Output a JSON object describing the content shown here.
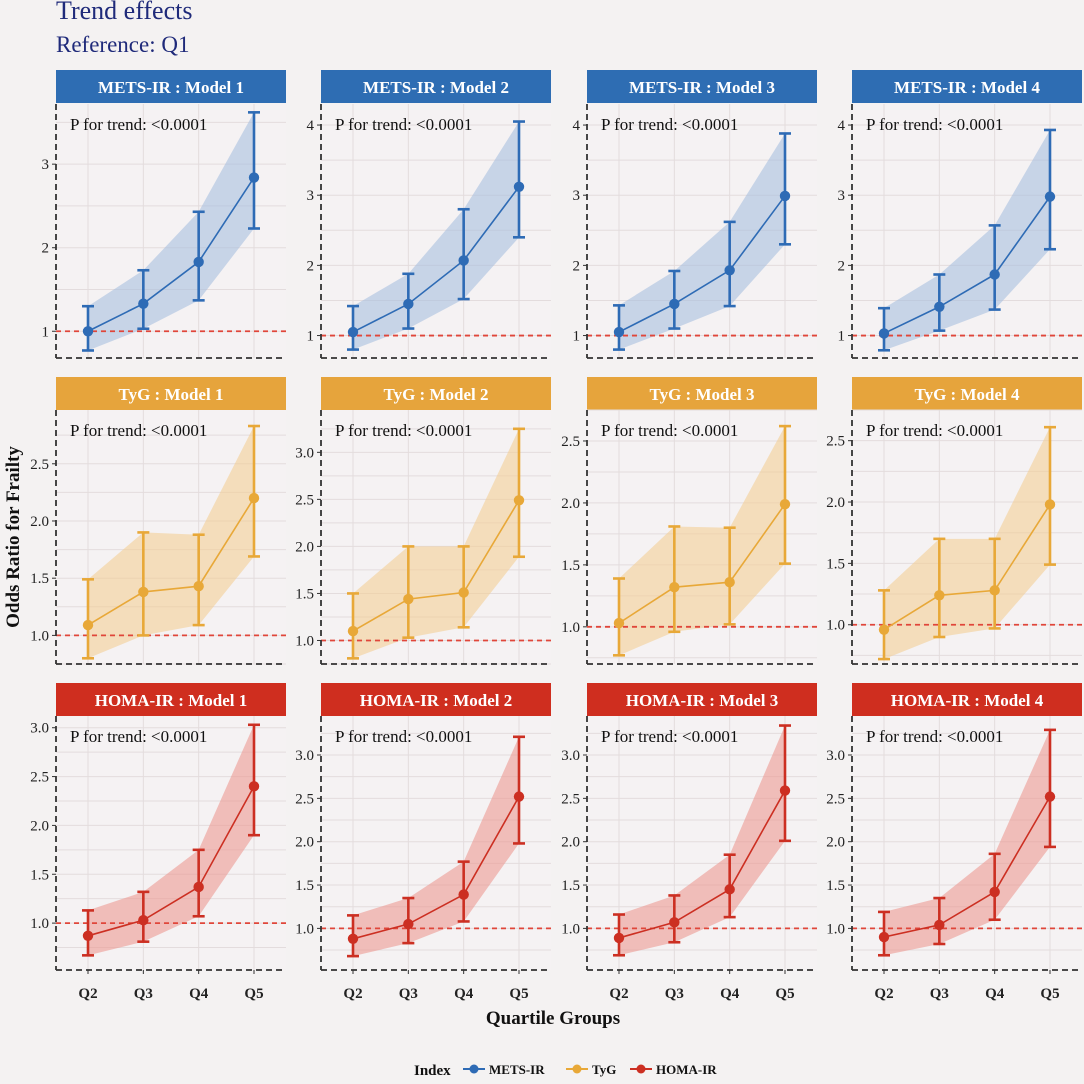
{
  "header": {
    "title": "Trend effects",
    "subtitle": "Reference: Q1"
  },
  "chart_data": {
    "type": "line",
    "xlabel": "Quartile Groups",
    "ylabel": "Odds Ratio for Frailty",
    "categories": [
      "Q2",
      "Q3",
      "Q4",
      "Q5"
    ],
    "reference_line": 1.0,
    "legend": {
      "title": "Index",
      "entries": [
        "METS-IR",
        "TyG",
        "HOMA-IR"
      ],
      "placement": "bottom"
    },
    "colors": {
      "METS-IR": "#2e6bb5",
      "TyG": "#e8a838",
      "HOMA-IR": "#cc2f22",
      "reference": "#e0463a"
    },
    "strip_colors": {
      "METS-IR": "#2e6db3",
      "TyG": "#e6a43c",
      "HOMA-IR": "#cf2e1f"
    },
    "panels": [
      {
        "index": "METS-IR",
        "model": "Model 1",
        "label": "METS-IR : Model 1",
        "p_text": "P for trend: <0.0001",
        "ylim": [
          0.68,
          3.72
        ],
        "yticks": [
          1,
          2,
          3
        ],
        "tick_labels": [
          "1",
          "2",
          "3"
        ],
        "or": [
          1.0,
          1.33,
          1.83,
          2.84
        ],
        "lo": [
          0.77,
          1.03,
          1.37,
          2.23
        ],
        "hi": [
          1.3,
          1.73,
          2.43,
          3.62
        ]
      },
      {
        "index": "METS-IR",
        "model": "Model 2",
        "label": "METS-IR : Model 2",
        "p_text": "P for trend: <0.0001",
        "ylim": [
          0.68,
          4.3
        ],
        "yticks": [
          1,
          2,
          3,
          4
        ],
        "tick_labels": [
          "1",
          "2",
          "3",
          "4"
        ],
        "or": [
          1.05,
          1.45,
          2.07,
          3.12
        ],
        "lo": [
          0.8,
          1.1,
          1.52,
          2.4
        ],
        "hi": [
          1.42,
          1.88,
          2.8,
          4.05
        ]
      },
      {
        "index": "METS-IR",
        "model": "Model 3",
        "label": "METS-IR : Model 3",
        "p_text": "P for trend: <0.0001",
        "ylim": [
          0.68,
          4.3
        ],
        "yticks": [
          1,
          2,
          3,
          4
        ],
        "tick_labels": [
          "1",
          "2",
          "3",
          "4"
        ],
        "or": [
          1.05,
          1.45,
          1.93,
          2.99
        ],
        "lo": [
          0.8,
          1.1,
          1.42,
          2.3
        ],
        "hi": [
          1.43,
          1.92,
          2.62,
          3.88
        ]
      },
      {
        "index": "METS-IR",
        "model": "Model 4",
        "label": "METS-IR : Model 4",
        "p_text": "P for trend: <0.0001",
        "ylim": [
          0.68,
          4.3
        ],
        "yticks": [
          1,
          2,
          3,
          4
        ],
        "tick_labels": [
          "1",
          "2",
          "3",
          "4"
        ],
        "or": [
          1.03,
          1.41,
          1.87,
          2.98
        ],
        "lo": [
          0.79,
          1.07,
          1.37,
          2.23
        ],
        "hi": [
          1.39,
          1.87,
          2.57,
          3.93
        ]
      },
      {
        "index": "TyG",
        "model": "Model 1",
        "label": "TyG : Model 1",
        "p_text": "P for trend: <0.0001",
        "ylim": [
          0.75,
          2.97
        ],
        "yticks": [
          1.0,
          1.5,
          2.0,
          2.5
        ],
        "tick_labels": [
          "1.0",
          "1.5",
          "2.0",
          "2.5"
        ],
        "or": [
          1.09,
          1.38,
          1.43,
          2.2
        ],
        "lo": [
          0.8,
          1.0,
          1.09,
          1.69
        ],
        "hi": [
          1.49,
          1.9,
          1.88,
          2.83
        ]
      },
      {
        "index": "TyG",
        "model": "Model 2",
        "label": "TyG : Model 2",
        "p_text": "P for trend: <0.0001",
        "ylim": [
          0.75,
          3.45
        ],
        "yticks": [
          1.0,
          1.5,
          2.0,
          2.5,
          3.0
        ],
        "tick_labels": [
          "1.0",
          "1.5",
          "2.0",
          "2.5",
          "3.0"
        ],
        "or": [
          1.1,
          1.44,
          1.51,
          2.49
        ],
        "lo": [
          0.81,
          1.03,
          1.14,
          1.89
        ],
        "hi": [
          1.5,
          2.0,
          2.0,
          3.25
        ]
      },
      {
        "index": "TyG",
        "model": "Model 3",
        "label": "TyG : Model 3",
        "p_text": "P for trend: <0.0001",
        "ylim": [
          0.7,
          2.75
        ],
        "yticks": [
          1.0,
          1.5,
          2.0,
          2.5
        ],
        "tick_labels": [
          "1.0",
          "1.5",
          "2.0",
          "2.5"
        ],
        "or": [
          1.03,
          1.32,
          1.36,
          1.99
        ],
        "lo": [
          0.77,
          0.96,
          1.02,
          1.51
        ],
        "hi": [
          1.39,
          1.81,
          1.8,
          2.62
        ]
      },
      {
        "index": "TyG",
        "model": "Model 4",
        "label": "TyG : Model 4",
        "p_text": "P for trend: <0.0001",
        "ylim": [
          0.68,
          2.75
        ],
        "yticks": [
          1.0,
          1.5,
          2.0,
          2.5
        ],
        "tick_labels": [
          "1.0",
          "1.5",
          "2.0",
          "2.5"
        ],
        "or": [
          0.96,
          1.24,
          1.28,
          1.98
        ],
        "lo": [
          0.72,
          0.9,
          0.97,
          1.49
        ],
        "hi": [
          1.28,
          1.7,
          1.7,
          2.61
        ]
      },
      {
        "index": "HOMA-IR",
        "model": "Model 1",
        "label": "HOMA-IR : Model 1",
        "p_text": "P for trend: <0.0001",
        "ylim": [
          0.52,
          3.12
        ],
        "yticks": [
          1.0,
          1.5,
          2.0,
          2.5,
          3.0
        ],
        "tick_labels": [
          "1.0",
          "1.5",
          "2.0",
          "2.5",
          "3.0"
        ],
        "or": [
          0.87,
          1.03,
          1.37,
          2.4
        ],
        "lo": [
          0.67,
          0.81,
          1.07,
          1.9
        ],
        "hi": [
          1.13,
          1.32,
          1.75,
          3.03
        ]
      },
      {
        "index": "HOMA-IR",
        "model": "Model 2",
        "label": "HOMA-IR : Model 2",
        "p_text": "P for trend: <0.0001",
        "ylim": [
          0.52,
          3.45
        ],
        "yticks": [
          1.0,
          1.5,
          2.0,
          2.5,
          3.0
        ],
        "tick_labels": [
          "1.0",
          "1.5",
          "2.0",
          "2.5",
          "3.0"
        ],
        "or": [
          0.88,
          1.05,
          1.39,
          2.52
        ],
        "lo": [
          0.68,
          0.83,
          1.08,
          1.98
        ],
        "hi": [
          1.15,
          1.35,
          1.77,
          3.21
        ]
      },
      {
        "index": "HOMA-IR",
        "model": "Model 3",
        "label": "HOMA-IR : Model 3",
        "p_text": "P for trend: <0.0001",
        "ylim": [
          0.52,
          3.45
        ],
        "yticks": [
          1.0,
          1.5,
          2.0,
          2.5,
          3.0
        ],
        "tick_labels": [
          "1.0",
          "1.5",
          "2.0",
          "2.5",
          "3.0"
        ],
        "or": [
          0.89,
          1.07,
          1.45,
          2.59
        ],
        "lo": [
          0.69,
          0.84,
          1.13,
          2.01
        ],
        "hi": [
          1.16,
          1.38,
          1.85,
          3.34
        ]
      },
      {
        "index": "HOMA-IR",
        "model": "Model 4",
        "label": "HOMA-IR : Model 4",
        "p_text": "P for trend: <0.0001",
        "ylim": [
          0.52,
          3.45
        ],
        "yticks": [
          1.0,
          1.5,
          2.0,
          2.5,
          3.0
        ],
        "tick_labels": [
          "1.0",
          "1.5",
          "2.0",
          "2.5",
          "3.0"
        ],
        "or": [
          0.9,
          1.04,
          1.42,
          2.52
        ],
        "lo": [
          0.69,
          0.82,
          1.1,
          1.94
        ],
        "hi": [
          1.19,
          1.35,
          1.86,
          3.29
        ]
      }
    ]
  }
}
